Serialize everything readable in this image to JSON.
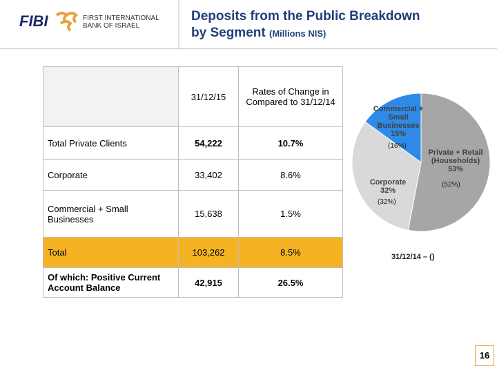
{
  "header": {
    "logo": "FIBI",
    "bank_name_line1": "FIRST INTERNATIONAL",
    "bank_name_line2": "BANK OF ISRAEL",
    "title": "Deposits from the Public Breakdown",
    "title_line2": "by Segment",
    "title_unit": "(Millions NIS)"
  },
  "table": {
    "columns": [
      "",
      "31/12/15",
      "Rates of Change in Compared to 31/12/14"
    ],
    "rows": [
      [
        "Total Private Clients",
        "54,222",
        "10.7%"
      ],
      [
        "Corporate",
        "33,402",
        "8.6%"
      ],
      [
        "Commercial + Small Businesses",
        "15,638",
        "1.5%"
      ],
      [
        "Total",
        "103,262",
        "8.5%"
      ],
      [
        "Of which: Positive Current Account Balance",
        "42,915",
        "26.5%"
      ]
    ]
  },
  "pie": {
    "type": "pie",
    "caption": "31/12/14 – ()",
    "slices": [
      {
        "name": "Private + Retail (Households)",
        "value": 53,
        "value_label": "53%",
        "previous": "(52%)",
        "color": "#a6a6a6"
      },
      {
        "name": "Corporate",
        "value": 32,
        "value_label": "32%",
        "previous": "(32%)",
        "color": "#d9d9d9"
      },
      {
        "name": "Commercial + Small Businesses",
        "value": 15,
        "value_label": "15%",
        "previous": "(16%)",
        "color": "#2e8ae6"
      }
    ]
  },
  "footer": {
    "page_number": "16"
  }
}
